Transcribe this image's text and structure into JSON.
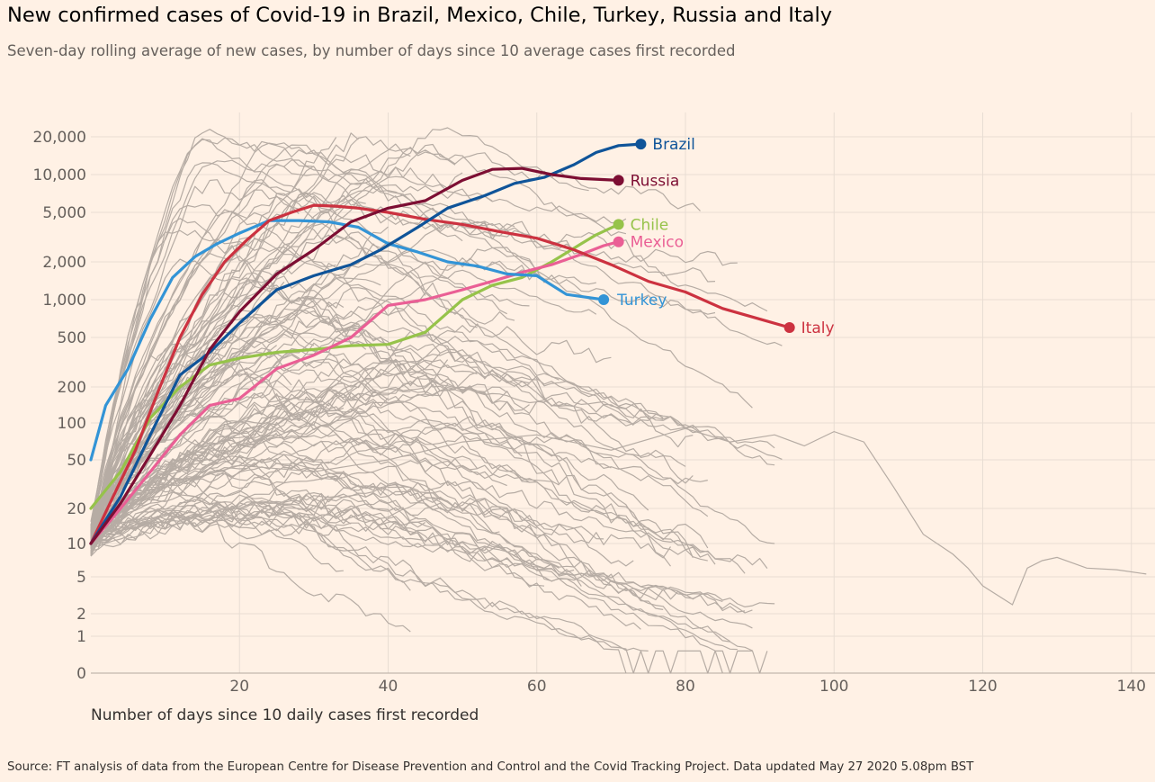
{
  "title": "New confirmed cases of Covid-19 in Brazil, Mexico, Chile, Turkey, Russia and Italy",
  "subtitle": "Seven-day rolling average of new cases, by number of days since 10 average cases first recorded",
  "source": "Source: FT analysis of data from the European Centre for Disease Prevention and Control and the Covid Tracking Project. Data updated May 27 2020 5.08pm BST",
  "chart_data": {
    "type": "line",
    "y_scale": "symlog",
    "grid": true,
    "xlabel": "Number of days since 10 daily cases first recorded",
    "ylabel": "",
    "xlim": [
      0,
      143
    ],
    "ylim": [
      0,
      30000
    ],
    "x_ticks": [
      20,
      40,
      60,
      80,
      100,
      120,
      140
    ],
    "x_tick_labels": [
      "20",
      "40",
      "60",
      "80",
      "100",
      "120",
      "140"
    ],
    "y_ticks": [
      0,
      1,
      2,
      5,
      10,
      20,
      50,
      100,
      200,
      500,
      1000,
      2000,
      5000,
      10000,
      20000
    ],
    "y_tick_labels": [
      "0",
      "1",
      "2",
      "5",
      "10",
      "20",
      "50",
      "100",
      "200",
      "500",
      "1,000",
      "2,000",
      "5,000",
      "10,000",
      "20,000"
    ],
    "colors": {
      "background": "#fff1e5",
      "grid": "#e8ddd3",
      "context": "#b6aca4",
      "Brazil": "#0f5499",
      "Russia": "#7d0e33",
      "Chile": "#96c34a",
      "Mexico": "#ea5f95",
      "Turkey": "#3394d6",
      "Italy": "#cc3240"
    },
    "series": [
      {
        "name": "Brazil",
        "x": [
          0,
          4,
          8,
          12,
          16,
          20,
          25,
          30,
          35,
          39,
          44,
          48,
          53,
          57,
          61,
          65,
          68,
          71,
          74
        ],
        "y": [
          10,
          25,
          80,
          250,
          380,
          650,
          1200,
          1550,
          1900,
          2500,
          3800,
          5400,
          6800,
          8500,
          9500,
          12000,
          15000,
          17000,
          17500
        ]
      },
      {
        "name": "Russia",
        "x": [
          0,
          4,
          8,
          12,
          16,
          20,
          25,
          30,
          35,
          40,
          45,
          50,
          54,
          58,
          62,
          66,
          71
        ],
        "y": [
          10,
          22,
          55,
          140,
          400,
          800,
          1600,
          2500,
          4200,
          5400,
          6200,
          9000,
          11000,
          11200,
          10000,
          9300,
          9000
        ]
      },
      {
        "name": "Chile",
        "x": [
          0,
          4,
          8,
          12,
          16,
          20,
          25,
          30,
          35,
          40,
          45,
          50,
          54,
          58,
          62,
          66,
          68,
          71
        ],
        "y": [
          20,
          40,
          110,
          200,
          300,
          340,
          380,
          400,
          430,
          440,
          550,
          1000,
          1300,
          1500,
          2000,
          2800,
          3300,
          4000
        ]
      },
      {
        "name": "Mexico",
        "x": [
          0,
          4,
          8,
          12,
          16,
          20,
          25,
          30,
          35,
          40,
          45,
          50,
          54,
          58,
          62,
          66,
          69,
          71
        ],
        "y": [
          10,
          20,
          40,
          80,
          140,
          160,
          280,
          360,
          500,
          900,
          1000,
          1200,
          1400,
          1650,
          1900,
          2300,
          2700,
          2900
        ]
      },
      {
        "name": "Turkey",
        "x": [
          0,
          2,
          5,
          8,
          11,
          14,
          17,
          20,
          24,
          28,
          32,
          36,
          40,
          44,
          48,
          52,
          56,
          60,
          64,
          69
        ],
        "y": [
          50,
          140,
          280,
          700,
          1500,
          2200,
          2800,
          3400,
          4300,
          4300,
          4200,
          3800,
          2800,
          2400,
          2000,
          1850,
          1600,
          1550,
          1100,
          1000
        ]
      },
      {
        "name": "Italy",
        "x": [
          0,
          3,
          6,
          9,
          12,
          15,
          18,
          21,
          24,
          27,
          30,
          33,
          36,
          40,
          45,
          50,
          55,
          60,
          65,
          70,
          75,
          80,
          85,
          90,
          94
        ],
        "y": [
          10,
          25,
          60,
          180,
          500,
          1100,
          2000,
          3000,
          4300,
          5000,
          5700,
          5600,
          5400,
          5000,
          4400,
          4000,
          3500,
          3100,
          2500,
          1900,
          1400,
          1150,
          850,
          700,
          600
        ]
      }
    ]
  },
  "context_lines_note": "Grey lines: other countries"
}
